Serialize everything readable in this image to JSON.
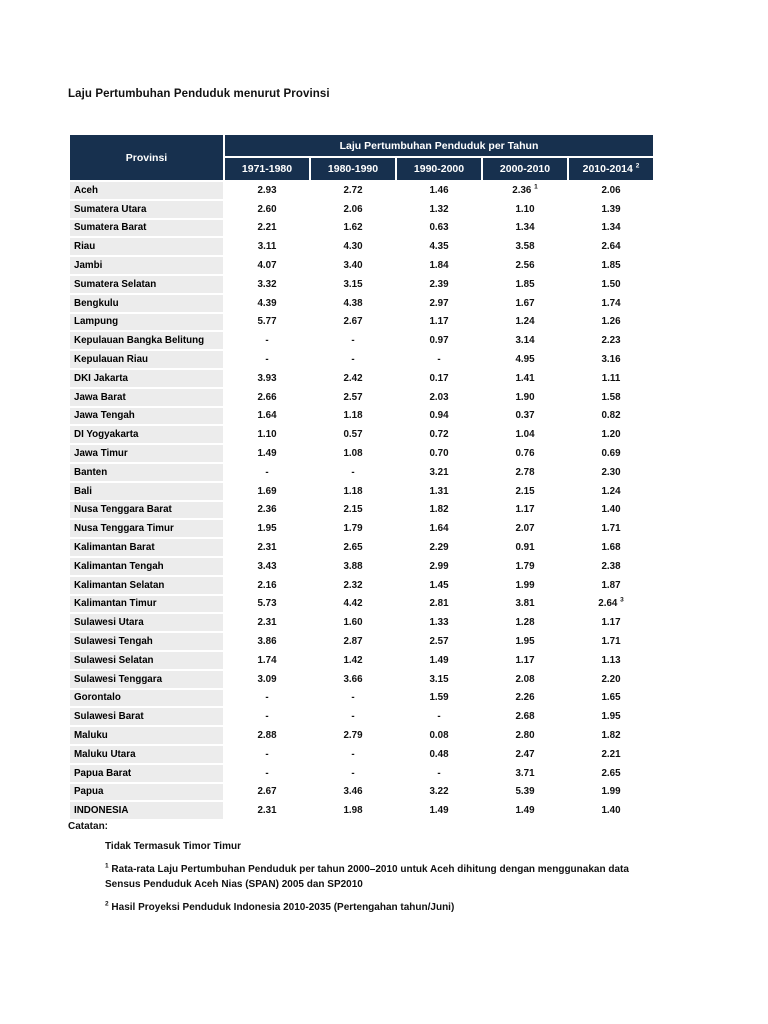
{
  "document": {
    "title": "Laju Pertumbuhan Penduduk menurut Provinsi"
  },
  "colors": {
    "header_navy": "#17304e",
    "row_gray": "#ececec"
  },
  "table": {
    "province_header": "Provinsi",
    "group_header": "Laju Pertumbuhan Penduduk per Tahun",
    "columns": [
      {
        "label": "1971-1980",
        "sup": ""
      },
      {
        "label": "1980-1990",
        "sup": ""
      },
      {
        "label": "1990-2000",
        "sup": ""
      },
      {
        "label": "2000-2010",
        "sup": ""
      },
      {
        "label": "2010-2014",
        "sup": "2"
      }
    ],
    "rows": [
      {
        "province": "Aceh",
        "values": [
          {
            "v": "2.93"
          },
          {
            "v": "2.72"
          },
          {
            "v": "1.46"
          },
          {
            "v": "2.36",
            "sup": "1"
          },
          {
            "v": "2.06"
          }
        ]
      },
      {
        "province": "Sumatera Utara",
        "values": [
          {
            "v": "2.60"
          },
          {
            "v": "2.06"
          },
          {
            "v": "1.32"
          },
          {
            "v": "1.10"
          },
          {
            "v": "1.39"
          }
        ]
      },
      {
        "province": "Sumatera Barat",
        "values": [
          {
            "v": "2.21"
          },
          {
            "v": "1.62"
          },
          {
            "v": "0.63"
          },
          {
            "v": "1.34"
          },
          {
            "v": "1.34"
          }
        ]
      },
      {
        "province": "Riau",
        "values": [
          {
            "v": "3.11"
          },
          {
            "v": "4.30"
          },
          {
            "v": "4.35"
          },
          {
            "v": "3.58"
          },
          {
            "v": "2.64"
          }
        ]
      },
      {
        "province": "Jambi",
        "values": [
          {
            "v": "4.07"
          },
          {
            "v": "3.40"
          },
          {
            "v": "1.84"
          },
          {
            "v": "2.56"
          },
          {
            "v": "1.85"
          }
        ]
      },
      {
        "province": "Sumatera Selatan",
        "values": [
          {
            "v": "3.32"
          },
          {
            "v": "3.15"
          },
          {
            "v": "2.39"
          },
          {
            "v": "1.85"
          },
          {
            "v": "1.50"
          }
        ]
      },
      {
        "province": "Bengkulu",
        "values": [
          {
            "v": "4.39"
          },
          {
            "v": "4.38"
          },
          {
            "v": "2.97"
          },
          {
            "v": "1.67"
          },
          {
            "v": "1.74"
          }
        ]
      },
      {
        "province": "Lampung",
        "values": [
          {
            "v": "5.77"
          },
          {
            "v": "2.67"
          },
          {
            "v": "1.17"
          },
          {
            "v": "1.24"
          },
          {
            "v": "1.26"
          }
        ]
      },
      {
        "province": "Kepulauan Bangka Belitung",
        "values": [
          {
            "v": "-"
          },
          {
            "v": "-"
          },
          {
            "v": "0.97"
          },
          {
            "v": "3.14"
          },
          {
            "v": "2.23"
          }
        ]
      },
      {
        "province": "Kepulauan Riau",
        "values": [
          {
            "v": "-"
          },
          {
            "v": "-"
          },
          {
            "v": "-"
          },
          {
            "v": "4.95"
          },
          {
            "v": "3.16"
          }
        ]
      },
      {
        "province": "DKI Jakarta",
        "values": [
          {
            "v": "3.93"
          },
          {
            "v": "2.42"
          },
          {
            "v": "0.17"
          },
          {
            "v": "1.41"
          },
          {
            "v": "1.11"
          }
        ]
      },
      {
        "province": "Jawa Barat",
        "values": [
          {
            "v": "2.66"
          },
          {
            "v": "2.57"
          },
          {
            "v": "2.03"
          },
          {
            "v": "1.90"
          },
          {
            "v": "1.58"
          }
        ]
      },
      {
        "province": "Jawa Tengah",
        "values": [
          {
            "v": "1.64"
          },
          {
            "v": "1.18"
          },
          {
            "v": "0.94"
          },
          {
            "v": "0.37"
          },
          {
            "v": "0.82"
          }
        ]
      },
      {
        "province": "DI Yogyakarta",
        "values": [
          {
            "v": "1.10"
          },
          {
            "v": "0.57"
          },
          {
            "v": "0.72"
          },
          {
            "v": "1.04"
          },
          {
            "v": "1.20"
          }
        ]
      },
      {
        "province": "Jawa Timur",
        "values": [
          {
            "v": "1.49"
          },
          {
            "v": "1.08"
          },
          {
            "v": "0.70"
          },
          {
            "v": "0.76"
          },
          {
            "v": "0.69"
          }
        ]
      },
      {
        "province": "Banten",
        "values": [
          {
            "v": "-"
          },
          {
            "v": "-"
          },
          {
            "v": "3.21"
          },
          {
            "v": "2.78"
          },
          {
            "v": "2.30"
          }
        ]
      },
      {
        "province": "Bali",
        "values": [
          {
            "v": "1.69"
          },
          {
            "v": "1.18"
          },
          {
            "v": "1.31"
          },
          {
            "v": "2.15"
          },
          {
            "v": "1.24"
          }
        ]
      },
      {
        "province": "Nusa Tenggara Barat",
        "values": [
          {
            "v": "2.36"
          },
          {
            "v": "2.15"
          },
          {
            "v": "1.82"
          },
          {
            "v": "1.17"
          },
          {
            "v": "1.40"
          }
        ]
      },
      {
        "province": "Nusa Tenggara Timur",
        "values": [
          {
            "v": "1.95"
          },
          {
            "v": "1.79"
          },
          {
            "v": "1.64"
          },
          {
            "v": "2.07"
          },
          {
            "v": "1.71"
          }
        ]
      },
      {
        "province": "Kalimantan Barat",
        "values": [
          {
            "v": "2.31"
          },
          {
            "v": "2.65"
          },
          {
            "v": "2.29"
          },
          {
            "v": "0.91"
          },
          {
            "v": "1.68"
          }
        ]
      },
      {
        "province": "Kalimantan Tengah",
        "values": [
          {
            "v": "3.43"
          },
          {
            "v": "3.88"
          },
          {
            "v": "2.99"
          },
          {
            "v": "1.79"
          },
          {
            "v": "2.38"
          }
        ]
      },
      {
        "province": "Kalimantan Selatan",
        "values": [
          {
            "v": "2.16"
          },
          {
            "v": "2.32"
          },
          {
            "v": "1.45"
          },
          {
            "v": "1.99"
          },
          {
            "v": "1.87"
          }
        ]
      },
      {
        "province": "Kalimantan Timur",
        "values": [
          {
            "v": "5.73"
          },
          {
            "v": "4.42"
          },
          {
            "v": "2.81"
          },
          {
            "v": "3.81"
          },
          {
            "v": "2.64",
            "sup": "3"
          }
        ]
      },
      {
        "province": "Sulawesi Utara",
        "values": [
          {
            "v": "2.31"
          },
          {
            "v": "1.60"
          },
          {
            "v": "1.33"
          },
          {
            "v": "1.28"
          },
          {
            "v": "1.17"
          }
        ]
      },
      {
        "province": "Sulawesi Tengah",
        "values": [
          {
            "v": "3.86"
          },
          {
            "v": "2.87"
          },
          {
            "v": "2.57"
          },
          {
            "v": "1.95"
          },
          {
            "v": "1.71"
          }
        ]
      },
      {
        "province": "Sulawesi Selatan",
        "values": [
          {
            "v": "1.74"
          },
          {
            "v": "1.42"
          },
          {
            "v": "1.49"
          },
          {
            "v": "1.17"
          },
          {
            "v": "1.13"
          }
        ]
      },
      {
        "province": "Sulawesi Tenggara",
        "values": [
          {
            "v": "3.09"
          },
          {
            "v": "3.66"
          },
          {
            "v": "3.15"
          },
          {
            "v": "2.08"
          },
          {
            "v": "2.20"
          }
        ]
      },
      {
        "province": "Gorontalo",
        "values": [
          {
            "v": "-"
          },
          {
            "v": "-"
          },
          {
            "v": "1.59"
          },
          {
            "v": "2.26"
          },
          {
            "v": "1.65"
          }
        ]
      },
      {
        "province": "Sulawesi Barat",
        "values": [
          {
            "v": "-"
          },
          {
            "v": "-"
          },
          {
            "v": "-"
          },
          {
            "v": "2.68"
          },
          {
            "v": "1.95"
          }
        ]
      },
      {
        "province": "Maluku",
        "values": [
          {
            "v": "2.88"
          },
          {
            "v": "2.79"
          },
          {
            "v": "0.08"
          },
          {
            "v": "2.80"
          },
          {
            "v": "1.82"
          }
        ]
      },
      {
        "province": "Maluku Utara",
        "values": [
          {
            "v": "-"
          },
          {
            "v": "-"
          },
          {
            "v": "0.48"
          },
          {
            "v": "2.47"
          },
          {
            "v": "2.21"
          }
        ]
      },
      {
        "province": "Papua Barat",
        "values": [
          {
            "v": "-"
          },
          {
            "v": "-"
          },
          {
            "v": "-"
          },
          {
            "v": "3.71"
          },
          {
            "v": "2.65"
          }
        ]
      },
      {
        "province": "Papua",
        "values": [
          {
            "v": "2.67"
          },
          {
            "v": "3.46"
          },
          {
            "v": "3.22"
          },
          {
            "v": "5.39"
          },
          {
            "v": "1.99"
          }
        ]
      },
      {
        "province": "INDONESIA",
        "values": [
          {
            "v": "2.31"
          },
          {
            "v": "1.98"
          },
          {
            "v": "1.49"
          },
          {
            "v": "1.49"
          },
          {
            "v": "1.40"
          }
        ]
      }
    ]
  },
  "notes": {
    "label": "Catatan:",
    "items": [
      {
        "sup": "",
        "text": "Tidak Termasuk Timor Timur"
      },
      {
        "sup": "1",
        "text": "Rata-rata Laju Pertumbuhan Penduduk per tahun 2000–2010 untuk Aceh dihitung dengan menggunakan data Sensus Penduduk Aceh Nias (SPAN) 2005 dan SP2010"
      },
      {
        "sup": "2",
        "text": "Hasil Proyeksi Penduduk Indonesia 2010-2035 (Pertengahan tahun/Juni)"
      }
    ]
  }
}
